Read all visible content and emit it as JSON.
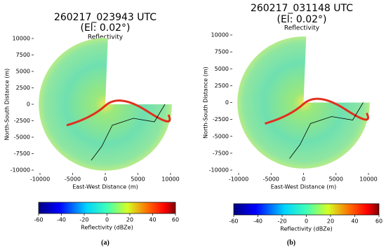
{
  "panels": [
    {
      "title": "260217_023943 UTC",
      "subtitle": "(El: 0.02°)",
      "plot_title": "Reflectivity",
      "xlabel": "East-West Distance (m)",
      "ylabel": "North-South Distance (m)",
      "xticks": [
        -10000,
        -5000,
        0,
        5000,
        10000
      ],
      "yticks": [
        -10000,
        -7500,
        -5000,
        -2500,
        0,
        2500,
        5000,
        7500,
        10000
      ],
      "colorbar": {
        "label": "Reflectivity (dBZe)",
        "lim": [
          -60,
          60
        ],
        "ticks": [
          -60,
          -40,
          -20,
          0,
          20,
          40,
          60
        ]
      },
      "caption": "(a)"
    },
    {
      "title": "260217_031148 UTC",
      "subtitle": "(El: 0.02°)",
      "plot_title": "Reflectivity",
      "xlabel": "East-West Distance (m)",
      "ylabel": "North-South Distance (m)",
      "xticks": [
        -10000,
        -5000,
        0,
        5000,
        10000
      ],
      "yticks": [
        -10000,
        -7500,
        -5000,
        -2500,
        0,
        2500,
        5000,
        7500,
        10000
      ],
      "colorbar": {
        "label": "Reflectivity (dBZe)",
        "lim": [
          -60,
          60
        ],
        "ticks": [
          -60,
          -40,
          -20,
          0,
          20,
          40,
          60
        ]
      },
      "caption": "(b)"
    }
  ]
}
